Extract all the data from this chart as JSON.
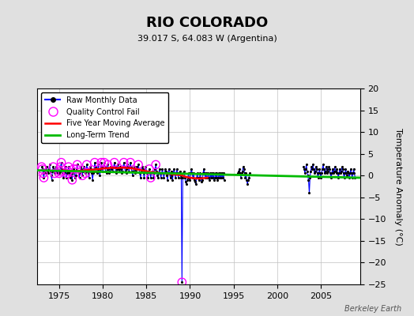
{
  "title": "RIO COLORADO",
  "subtitle": "39.017 S, 64.083 W (Argentina)",
  "ylabel": "Temperature Anomaly (°C)",
  "watermark": "Berkeley Earth",
  "xlim": [
    1972.5,
    2009.5
  ],
  "ylim": [
    -25,
    20
  ],
  "yticks": [
    -25,
    -20,
    -15,
    -10,
    -5,
    0,
    5,
    10,
    15,
    20
  ],
  "xticks": [
    1975,
    1980,
    1985,
    1990,
    1995,
    2000,
    2005
  ],
  "bg_color": "#e0e0e0",
  "plot_bg_color": "#ffffff",
  "raw_color": "#0000ff",
  "raw_dot_color": "#000000",
  "qc_color": "#ff00ff",
  "ma_color": "#ff0000",
  "trend_color": "#00bb00",
  "raw_data": [
    [
      1973.0,
      2.0
    ],
    [
      1973.08,
      1.5
    ],
    [
      1973.17,
      0.5
    ],
    [
      1973.25,
      -0.5
    ],
    [
      1973.33,
      1.0
    ],
    [
      1973.42,
      0.5
    ],
    [
      1973.5,
      1.5
    ],
    [
      1973.58,
      2.0
    ],
    [
      1973.67,
      1.0
    ],
    [
      1973.75,
      0.5
    ],
    [
      1973.83,
      1.5
    ],
    [
      1973.92,
      2.5
    ],
    [
      1974.0,
      1.0
    ],
    [
      1974.08,
      0.0
    ],
    [
      1974.17,
      -1.0
    ],
    [
      1974.25,
      1.0
    ],
    [
      1974.33,
      2.0
    ],
    [
      1974.42,
      1.5
    ],
    [
      1974.5,
      0.5
    ],
    [
      1974.58,
      1.0
    ],
    [
      1974.67,
      2.0
    ],
    [
      1974.75,
      1.5
    ],
    [
      1974.83,
      0.5
    ],
    [
      1974.92,
      1.0
    ],
    [
      1975.0,
      0.5
    ],
    [
      1975.08,
      1.0
    ],
    [
      1975.17,
      2.0
    ],
    [
      1975.25,
      3.0
    ],
    [
      1975.33,
      1.5
    ],
    [
      1975.42,
      0.5
    ],
    [
      1975.5,
      -0.5
    ],
    [
      1975.58,
      0.5
    ],
    [
      1975.67,
      1.0
    ],
    [
      1975.75,
      2.0
    ],
    [
      1975.83,
      -0.5
    ],
    [
      1975.92,
      0.5
    ],
    [
      1976.0,
      1.0
    ],
    [
      1976.08,
      2.0
    ],
    [
      1976.17,
      0.5
    ],
    [
      1976.25,
      -0.5
    ],
    [
      1976.33,
      1.0
    ],
    [
      1976.42,
      0.0
    ],
    [
      1976.5,
      -1.0
    ],
    [
      1976.58,
      0.5
    ],
    [
      1976.67,
      1.5
    ],
    [
      1976.75,
      1.0
    ],
    [
      1976.83,
      -0.5
    ],
    [
      1976.92,
      0.0
    ],
    [
      1977.0,
      1.5
    ],
    [
      1977.08,
      2.5
    ],
    [
      1977.17,
      1.0
    ],
    [
      1977.25,
      0.5
    ],
    [
      1977.33,
      -0.5
    ],
    [
      1977.42,
      1.0
    ],
    [
      1977.5,
      2.0
    ],
    [
      1977.58,
      1.5
    ],
    [
      1977.67,
      0.0
    ],
    [
      1977.75,
      1.0
    ],
    [
      1977.83,
      2.0
    ],
    [
      1977.92,
      1.5
    ],
    [
      1978.0,
      0.5
    ],
    [
      1978.08,
      1.0
    ],
    [
      1978.17,
      2.5
    ],
    [
      1978.25,
      1.5
    ],
    [
      1978.33,
      0.5
    ],
    [
      1978.42,
      -0.5
    ],
    [
      1978.5,
      1.0
    ],
    [
      1978.58,
      2.0
    ],
    [
      1978.67,
      1.5
    ],
    [
      1978.75,
      0.5
    ],
    [
      1978.83,
      -1.0
    ],
    [
      1978.92,
      0.5
    ],
    [
      1979.0,
      1.0
    ],
    [
      1979.08,
      3.0
    ],
    [
      1979.17,
      2.0
    ],
    [
      1979.25,
      1.0
    ],
    [
      1979.33,
      0.5
    ],
    [
      1979.42,
      1.5
    ],
    [
      1979.5,
      2.5
    ],
    [
      1979.58,
      1.0
    ],
    [
      1979.67,
      0.0
    ],
    [
      1979.75,
      1.5
    ],
    [
      1979.83,
      3.0
    ],
    [
      1979.92,
      2.0
    ],
    [
      1980.0,
      1.0
    ],
    [
      1980.08,
      2.0
    ],
    [
      1980.17,
      3.0
    ],
    [
      1980.25,
      2.0
    ],
    [
      1980.33,
      1.0
    ],
    [
      1980.42,
      0.5
    ],
    [
      1980.5,
      1.5
    ],
    [
      1980.58,
      2.5
    ],
    [
      1980.67,
      1.5
    ],
    [
      1980.75,
      0.5
    ],
    [
      1980.83,
      1.0
    ],
    [
      1980.92,
      2.0
    ],
    [
      1981.0,
      1.5
    ],
    [
      1981.08,
      2.0
    ],
    [
      1981.17,
      1.0
    ],
    [
      1981.25,
      2.0
    ],
    [
      1981.33,
      3.0
    ],
    [
      1981.42,
      2.0
    ],
    [
      1981.5,
      1.0
    ],
    [
      1981.58,
      0.5
    ],
    [
      1981.67,
      1.5
    ],
    [
      1981.75,
      2.5
    ],
    [
      1981.83,
      1.5
    ],
    [
      1981.92,
      1.0
    ],
    [
      1982.0,
      2.0
    ],
    [
      1982.08,
      1.5
    ],
    [
      1982.17,
      0.5
    ],
    [
      1982.25,
      1.0
    ],
    [
      1982.33,
      2.0
    ],
    [
      1982.42,
      3.0
    ],
    [
      1982.5,
      2.0
    ],
    [
      1982.58,
      1.0
    ],
    [
      1982.67,
      0.5
    ],
    [
      1982.75,
      1.5
    ],
    [
      1982.83,
      2.5
    ],
    [
      1982.92,
      2.0
    ],
    [
      1983.0,
      1.0
    ],
    [
      1983.08,
      2.0
    ],
    [
      1983.17,
      3.0
    ],
    [
      1983.25,
      2.0
    ],
    [
      1983.33,
      1.0
    ],
    [
      1983.42,
      0.0
    ],
    [
      1983.5,
      1.0
    ],
    [
      1983.58,
      2.0
    ],
    [
      1983.67,
      1.5
    ],
    [
      1983.75,
      0.5
    ],
    [
      1983.83,
      1.0
    ],
    [
      1983.92,
      2.0
    ],
    [
      1984.0,
      1.5
    ],
    [
      1984.08,
      2.5
    ],
    [
      1984.17,
      1.5
    ],
    [
      1984.25,
      0.5
    ],
    [
      1984.33,
      -0.5
    ],
    [
      1984.42,
      1.0
    ],
    [
      1984.5,
      2.0
    ],
    [
      1984.58,
      1.5
    ],
    [
      1984.67,
      0.5
    ],
    [
      1984.75,
      -0.5
    ],
    [
      1984.83,
      1.0
    ],
    [
      1984.92,
      2.0
    ],
    [
      1985.0,
      1.0
    ],
    [
      1985.08,
      0.5
    ],
    [
      1985.17,
      -0.5
    ],
    [
      1985.25,
      0.5
    ],
    [
      1985.33,
      1.5
    ],
    [
      1985.42,
      0.5
    ],
    [
      1985.5,
      -0.5
    ],
    [
      1985.58,
      0.5
    ],
    [
      1985.67,
      1.0
    ],
    [
      1985.75,
      0.5
    ],
    [
      1985.83,
      -0.5
    ],
    [
      1985.92,
      0.5
    ],
    [
      1986.0,
      1.5
    ],
    [
      1986.08,
      2.5
    ],
    [
      1986.17,
      1.0
    ],
    [
      1986.25,
      0.0
    ],
    [
      1986.33,
      -0.5
    ],
    [
      1986.42,
      0.5
    ],
    [
      1986.5,
      1.5
    ],
    [
      1986.58,
      0.5
    ],
    [
      1986.67,
      -0.5
    ],
    [
      1986.75,
      0.5
    ],
    [
      1986.83,
      1.5
    ],
    [
      1986.92,
      0.5
    ],
    [
      1987.0,
      -0.5
    ],
    [
      1987.08,
      0.5
    ],
    [
      1987.17,
      1.5
    ],
    [
      1987.25,
      1.0
    ],
    [
      1987.33,
      0.0
    ],
    [
      1987.42,
      -1.0
    ],
    [
      1987.5,
      0.5
    ],
    [
      1987.58,
      1.5
    ],
    [
      1987.67,
      0.5
    ],
    [
      1987.75,
      -0.5
    ],
    [
      1987.83,
      1.0
    ],
    [
      1987.92,
      0.0
    ],
    [
      1988.0,
      -1.0
    ],
    [
      1988.08,
      0.5
    ],
    [
      1988.17,
      1.5
    ],
    [
      1988.25,
      0.5
    ],
    [
      1988.33,
      -0.5
    ],
    [
      1988.42,
      0.5
    ],
    [
      1988.5,
      1.5
    ],
    [
      1988.58,
      0.5
    ],
    [
      1988.67,
      -0.5
    ],
    [
      1988.75,
      0.5
    ],
    [
      1988.83,
      1.0
    ],
    [
      1988.92,
      0.0
    ],
    [
      1989.0,
      -0.5
    ],
    [
      1989.08,
      -24.5
    ],
    [
      1989.17,
      -0.5
    ],
    [
      1989.25,
      0.5
    ],
    [
      1989.33,
      1.0
    ],
    [
      1989.42,
      -0.5
    ],
    [
      1989.5,
      -1.5
    ],
    [
      1989.58,
      -2.0
    ],
    [
      1989.67,
      -1.0
    ],
    [
      1989.75,
      -0.5
    ],
    [
      1989.83,
      0.5
    ],
    [
      1989.92,
      -1.0
    ],
    [
      1990.0,
      -0.5
    ],
    [
      1990.08,
      0.5
    ],
    [
      1990.17,
      1.5
    ],
    [
      1990.25,
      0.5
    ],
    [
      1990.33,
      -0.5
    ],
    [
      1990.42,
      0.5
    ],
    [
      1990.5,
      -1.0
    ],
    [
      1990.58,
      -1.5
    ],
    [
      1990.67,
      -2.0
    ],
    [
      1990.75,
      -0.5
    ],
    [
      1990.83,
      0.5
    ],
    [
      1990.92,
      -0.5
    ],
    [
      1991.0,
      -1.0
    ],
    [
      1991.08,
      -0.5
    ],
    [
      1991.17,
      0.5
    ],
    [
      1991.25,
      -0.5
    ],
    [
      1991.33,
      -1.5
    ],
    [
      1991.42,
      -1.0
    ],
    [
      1991.5,
      0.5
    ],
    [
      1991.58,
      1.5
    ],
    [
      1991.67,
      0.5
    ],
    [
      1991.75,
      -0.5
    ],
    [
      1991.83,
      0.5
    ],
    [
      1991.92,
      -0.5
    ],
    [
      1992.0,
      -0.5
    ],
    [
      1992.08,
      0.5
    ],
    [
      1992.17,
      -0.5
    ],
    [
      1992.25,
      -1.0
    ],
    [
      1992.33,
      0.5
    ],
    [
      1992.42,
      -0.5
    ],
    [
      1992.5,
      0.5
    ],
    [
      1992.58,
      -0.5
    ],
    [
      1992.67,
      0.5
    ],
    [
      1992.75,
      -1.0
    ],
    [
      1992.83,
      -0.5
    ],
    [
      1992.92,
      0.5
    ],
    [
      1993.0,
      -0.5
    ],
    [
      1993.08,
      0.5
    ],
    [
      1993.17,
      -1.0
    ],
    [
      1993.25,
      -0.5
    ],
    [
      1993.33,
      0.5
    ],
    [
      1993.42,
      -0.5
    ],
    [
      1993.5,
      0.5
    ],
    [
      1993.58,
      -0.5
    ],
    [
      1993.67,
      0.5
    ],
    [
      1993.75,
      -0.5
    ],
    [
      1993.83,
      0.5
    ],
    [
      1993.92,
      -1.0
    ],
    [
      1995.5,
      0.5
    ],
    [
      1995.58,
      1.0
    ],
    [
      1995.67,
      1.5
    ],
    [
      1995.75,
      0.5
    ],
    [
      1995.83,
      -0.5
    ],
    [
      1995.92,
      0.5
    ],
    [
      1996.0,
      1.0
    ],
    [
      1996.08,
      2.0
    ],
    [
      1996.17,
      1.5
    ],
    [
      1996.25,
      0.5
    ],
    [
      1996.33,
      -0.5
    ],
    [
      1996.42,
      0.5
    ],
    [
      1996.5,
      -1.0
    ],
    [
      1996.58,
      -2.0
    ],
    [
      1996.67,
      -1.0
    ],
    [
      1996.75,
      -0.5
    ],
    [
      1996.83,
      0.5
    ],
    [
      2003.0,
      2.0
    ],
    [
      2003.08,
      1.5
    ],
    [
      2003.17,
      0.5
    ],
    [
      2003.25,
      1.5
    ],
    [
      2003.33,
      2.5
    ],
    [
      2003.42,
      1.0
    ],
    [
      2003.5,
      0.0
    ],
    [
      2003.58,
      -1.0
    ],
    [
      2003.67,
      -4.0
    ],
    [
      2003.75,
      -0.5
    ],
    [
      2003.83,
      1.0
    ],
    [
      2003.92,
      2.0
    ],
    [
      2004.0,
      1.5
    ],
    [
      2004.08,
      2.5
    ],
    [
      2004.17,
      1.5
    ],
    [
      2004.25,
      0.5
    ],
    [
      2004.33,
      1.0
    ],
    [
      2004.42,
      2.0
    ],
    [
      2004.5,
      1.5
    ],
    [
      2004.58,
      0.5
    ],
    [
      2004.67,
      -0.5
    ],
    [
      2004.75,
      0.5
    ],
    [
      2004.83,
      1.5
    ],
    [
      2004.92,
      0.5
    ],
    [
      2005.0,
      -0.5
    ],
    [
      2005.08,
      0.5
    ],
    [
      2005.17,
      1.5
    ],
    [
      2005.25,
      2.5
    ],
    [
      2005.33,
      1.5
    ],
    [
      2005.42,
      0.5
    ],
    [
      2005.5,
      1.0
    ],
    [
      2005.58,
      2.0
    ],
    [
      2005.67,
      1.5
    ],
    [
      2005.75,
      0.5
    ],
    [
      2005.83,
      1.0
    ],
    [
      2005.92,
      2.0
    ],
    [
      2006.0,
      1.5
    ],
    [
      2006.08,
      0.5
    ],
    [
      2006.17,
      -0.5
    ],
    [
      2006.25,
      0.5
    ],
    [
      2006.33,
      1.5
    ],
    [
      2006.42,
      0.5
    ],
    [
      2006.5,
      1.0
    ],
    [
      2006.58,
      2.0
    ],
    [
      2006.67,
      1.0
    ],
    [
      2006.75,
      0.5
    ],
    [
      2006.83,
      1.5
    ],
    [
      2006.92,
      0.5
    ],
    [
      2007.0,
      -0.5
    ],
    [
      2007.08,
      0.5
    ],
    [
      2007.17,
      1.5
    ],
    [
      2007.25,
      0.5
    ],
    [
      2007.33,
      1.0
    ],
    [
      2007.42,
      2.0
    ],
    [
      2007.5,
      1.5
    ],
    [
      2007.58,
      0.5
    ],
    [
      2007.67,
      -0.5
    ],
    [
      2007.75,
      0.5
    ],
    [
      2007.83,
      1.5
    ],
    [
      2007.92,
      0.5
    ],
    [
      2008.0,
      0.0
    ],
    [
      2008.08,
      1.0
    ],
    [
      2008.17,
      0.5
    ],
    [
      2008.25,
      -0.5
    ],
    [
      2008.33,
      0.5
    ],
    [
      2008.42,
      1.5
    ],
    [
      2008.5,
      0.5
    ],
    [
      2008.58,
      -0.5
    ],
    [
      2008.67,
      0.5
    ],
    [
      2008.75,
      1.5
    ],
    [
      2008.83,
      0.5
    ],
    [
      2008.92,
      -0.5
    ]
  ],
  "qc_fail": [
    [
      1973.0,
      2.0
    ],
    [
      1973.08,
      1.5
    ],
    [
      1973.17,
      0.5
    ],
    [
      1973.25,
      -0.5
    ],
    [
      1974.33,
      2.0
    ],
    [
      1974.5,
      0.5
    ],
    [
      1975.0,
      0.5
    ],
    [
      1975.08,
      1.0
    ],
    [
      1975.17,
      2.0
    ],
    [
      1975.25,
      3.0
    ],
    [
      1975.92,
      0.5
    ],
    [
      1976.0,
      1.0
    ],
    [
      1976.08,
      2.0
    ],
    [
      1976.5,
      -1.0
    ],
    [
      1976.67,
      1.5
    ],
    [
      1977.0,
      1.5
    ],
    [
      1977.08,
      2.5
    ],
    [
      1977.67,
      0.0
    ],
    [
      1978.0,
      0.5
    ],
    [
      1978.17,
      2.5
    ],
    [
      1979.08,
      3.0
    ],
    [
      1979.83,
      3.0
    ],
    [
      1980.17,
      3.0
    ],
    [
      1980.58,
      2.5
    ],
    [
      1981.33,
      3.0
    ],
    [
      1982.42,
      3.0
    ],
    [
      1983.17,
      3.0
    ],
    [
      1984.08,
      2.5
    ],
    [
      1985.33,
      1.5
    ],
    [
      1985.5,
      -0.5
    ],
    [
      1986.08,
      2.5
    ],
    [
      1989.08,
      -24.5
    ]
  ],
  "moving_avg": [
    [
      1975.5,
      1.2
    ],
    [
      1976.0,
      1.1
    ],
    [
      1976.5,
      1.0
    ],
    [
      1977.0,
      1.0
    ],
    [
      1977.5,
      1.1
    ],
    [
      1978.0,
      1.2
    ],
    [
      1978.5,
      1.3
    ],
    [
      1979.0,
      1.4
    ],
    [
      1979.5,
      1.5
    ],
    [
      1980.0,
      1.6
    ],
    [
      1980.5,
      1.7
    ],
    [
      1981.0,
      1.8
    ],
    [
      1981.5,
      1.7
    ],
    [
      1982.0,
      1.8
    ],
    [
      1982.5,
      1.8
    ],
    [
      1983.0,
      1.7
    ],
    [
      1983.5,
      1.6
    ],
    [
      1984.0,
      1.4
    ],
    [
      1984.5,
      1.2
    ],
    [
      1985.0,
      1.0
    ],
    [
      1985.5,
      0.8
    ],
    [
      1986.0,
      0.7
    ],
    [
      1986.5,
      0.6
    ],
    [
      1987.0,
      0.5
    ],
    [
      1987.5,
      0.4
    ],
    [
      1988.0,
      0.3
    ],
    [
      1988.5,
      0.2
    ],
    [
      1989.0,
      0.1
    ],
    [
      1989.5,
      -0.3
    ],
    [
      1990.0,
      -0.5
    ],
    [
      1990.5,
      -0.6
    ],
    [
      1991.0,
      -0.7
    ],
    [
      1991.5,
      -0.6
    ],
    [
      1992.0,
      -0.5
    ]
  ],
  "trend_x": [
    1972.5,
    2009.5
  ],
  "trend_y": [
    1.2,
    -0.5
  ]
}
